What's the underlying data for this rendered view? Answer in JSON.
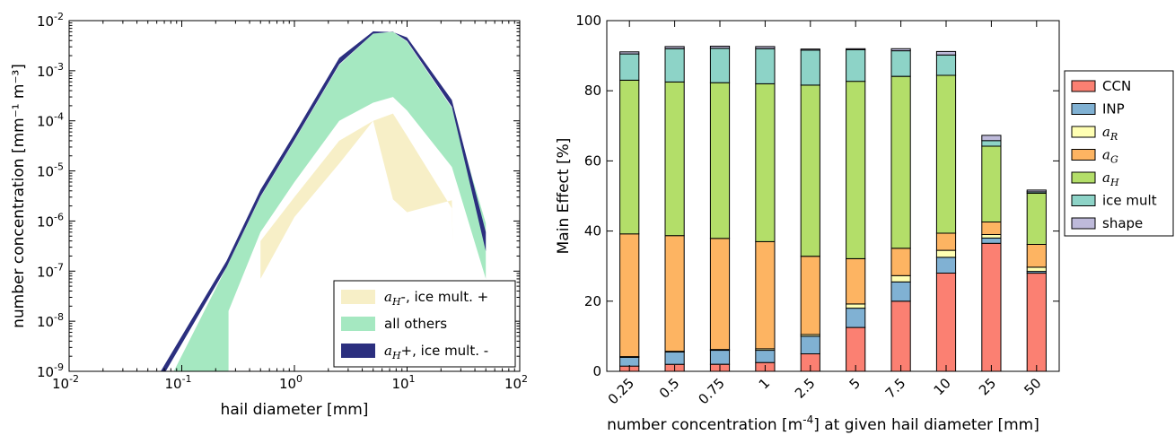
{
  "colors": {
    "hail_min": "#f7efc7",
    "others": "#a5e8c1",
    "hail_max": "#2b2f7f",
    "CCN": "#fb8072",
    "INP": "#80b1d3",
    "a_R": "#ffffb3",
    "a_G": "#fdb462",
    "a_H": "#b3de69",
    "ice_mult": "#8dd3c7",
    "shape": "#bebada"
  },
  "chart_data": [
    {
      "type": "area",
      "xlabel": "hail diameter [mm]",
      "ylabel": "number concentration [mm⁻¹ m⁻³]",
      "xscale": "log",
      "yscale": "log",
      "xlim": [
        0.01,
        100
      ],
      "ylim": [
        1e-09,
        0.01
      ],
      "x_ticks": [
        {
          "base": "10",
          "exp": "-2"
        },
        {
          "base": "10",
          "exp": "-1"
        },
        {
          "base": "10",
          "exp": "0"
        },
        {
          "base": "10",
          "exp": "1"
        },
        {
          "base": "10",
          "exp": "2"
        }
      ],
      "y_ticks": [
        {
          "base": "10",
          "exp": "-9"
        },
        {
          "base": "10",
          "exp": "-8"
        },
        {
          "base": "10",
          "exp": "-7"
        },
        {
          "base": "10",
          "exp": "-6"
        },
        {
          "base": "10",
          "exp": "-5"
        },
        {
          "base": "10",
          "exp": "-4"
        },
        {
          "base": "10",
          "exp": "-3"
        },
        {
          "base": "10",
          "exp": "-2"
        }
      ],
      "legend_position": "lower right",
      "series": [
        {
          "key": "others",
          "legend": {
            "math": "",
            "text": "all others"
          },
          "upper": [
            [
              0.085,
              1e-09
            ],
            [
              0.25,
              1.2e-07
            ],
            [
              0.5,
              3e-06
            ],
            [
              1,
              4e-05
            ],
            [
              2.5,
              0.0013
            ],
            [
              5,
              0.0055
            ],
            [
              7.5,
              0.006
            ],
            [
              10,
              0.0038
            ],
            [
              25,
              0.00018
            ],
            [
              50,
              9e-07
            ]
          ],
          "lower": [
            [
              0.26,
              1e-09
            ],
            [
              0.26,
              1.6e-08
            ],
            [
              0.5,
              6e-07
            ],
            [
              1,
              6e-06
            ],
            [
              2.5,
              0.0001
            ],
            [
              5,
              0.00023
            ],
            [
              7.5,
              0.0003
            ],
            [
              10,
              0.00016
            ],
            [
              25,
              1.2e-05
            ],
            [
              50,
              7e-08
            ]
          ]
        },
        {
          "key": "hail_max",
          "legend": {
            "math": "a_H",
            "text": "+, ice mult. -"
          },
          "upper": [
            [
              0.065,
              1e-09
            ],
            [
              0.25,
              1.6e-07
            ],
            [
              0.5,
              4.2e-06
            ],
            [
              1,
              5.5e-05
            ],
            [
              2.5,
              0.0018
            ],
            [
              5,
              0.0061
            ],
            [
              7.5,
              0.0059
            ],
            [
              10,
              0.0046
            ],
            [
              25,
              0.00026
            ],
            [
              50,
              6e-07
            ]
          ],
          "lower": [
            [
              0.072,
              1e-09
            ],
            [
              0.25,
              1.2e-07
            ],
            [
              0.5,
              3.1e-06
            ],
            [
              1,
              4.1e-05
            ],
            [
              2.5,
              0.00135
            ],
            [
              5,
              0.0055
            ],
            [
              7.5,
              0.006
            ],
            [
              10,
              0.0039
            ],
            [
              25,
              0.00019
            ],
            [
              50,
              2.5e-07
            ]
          ]
        },
        {
          "key": "hail_min",
          "legend": {
            "math": "a_H",
            "text": "-, ice mult. +"
          },
          "upper": [
            [
              0.5,
              4e-07
            ],
            [
              1,
              3e-06
            ],
            [
              2.5,
              4e-05
            ],
            [
              5,
              0.0001
            ],
            [
              7.5,
              0.00014
            ],
            [
              10,
              5e-05
            ],
            [
              25,
              1.8e-06
            ],
            [
              25.5,
              3e-07
            ]
          ],
          "lower": [
            [
              0.5,
              7e-08
            ],
            [
              1,
              1.2e-06
            ],
            [
              2.5,
              1.4e-05
            ],
            [
              5,
              0.0001
            ],
            [
              7.5,
              2.7e-06
            ],
            [
              10,
              1.5e-06
            ],
            [
              25,
              2.6e-06
            ],
            [
              25.5,
              3e-07
            ]
          ]
        }
      ]
    },
    {
      "type": "bar",
      "stacked": true,
      "xlabel_prefix": "number concentration [m",
      "xlabel_exp": "-4",
      "xlabel_suffix": "] at given hail diameter [mm]",
      "ylabel": "Main Effect [%]",
      "ylim": [
        0,
        100
      ],
      "y_ticks": [
        0,
        20,
        40,
        60,
        80,
        100
      ],
      "categories": [
        "0.25",
        "0.5",
        "0.75",
        "1",
        "2.5",
        "5",
        "7.5",
        "10",
        "25",
        "50"
      ],
      "legend_position": "outside right",
      "series": [
        {
          "key": "CCN",
          "legend": {
            "math": "",
            "text": "CCN"
          },
          "values": [
            1.5,
            2.0,
            2.0,
            2.5,
            5.0,
            12.5,
            20.0,
            28.0,
            36.5,
            28.0
          ]
        },
        {
          "key": "INP",
          "legend": {
            "math": "",
            "text": "INP"
          },
          "values": [
            2.5,
            3.5,
            4.0,
            3.5,
            5.0,
            5.5,
            5.5,
            4.5,
            1.5,
            0.5
          ]
        },
        {
          "key": "a_R",
          "legend": {
            "math": "a_R",
            "text": ""
          },
          "values": [
            0.2,
            0.2,
            0.2,
            0.4,
            0.5,
            1.2,
            1.8,
            2.0,
            1.0,
            1.2
          ]
        },
        {
          "key": "a_G",
          "legend": {
            "math": "a_G",
            "text": ""
          },
          "values": [
            35.0,
            33.0,
            31.7,
            30.6,
            22.3,
            12.9,
            7.8,
            4.9,
            3.6,
            6.5
          ]
        },
        {
          "key": "a_H",
          "legend": {
            "math": "a_H",
            "text": ""
          },
          "values": [
            43.8,
            43.8,
            44.4,
            45.0,
            48.8,
            50.6,
            49.0,
            45.0,
            21.6,
            14.6
          ]
        },
        {
          "key": "ice_mult",
          "legend": {
            "math": "",
            "text": "ice mult"
          },
          "values": [
            7.5,
            9.5,
            9.8,
            10.0,
            10.0,
            9.0,
            7.3,
            5.8,
            1.6,
            0.4
          ]
        },
        {
          "key": "shape",
          "legend": {
            "math": "",
            "text": "shape"
          },
          "values": [
            0.6,
            0.6,
            0.6,
            0.6,
            0.3,
            0.3,
            0.6,
            1.0,
            1.5,
            0.5
          ]
        }
      ]
    }
  ]
}
